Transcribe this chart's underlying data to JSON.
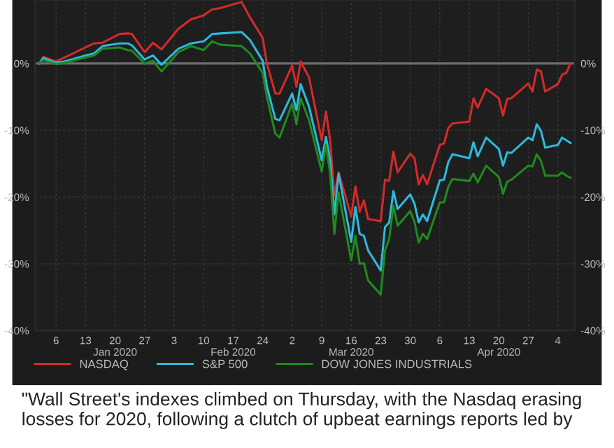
{
  "chart_data": {
    "type": "line",
    "x": [
      "2020-01-02",
      "2020-01-03",
      "2020-01-06",
      "2020-01-08",
      "2020-01-13",
      "2020-01-15",
      "2020-01-17",
      "2020-01-21",
      "2020-01-23",
      "2020-01-24",
      "2020-01-27",
      "2020-01-29",
      "2020-01-31",
      "2020-02-04",
      "2020-02-07",
      "2020-02-10",
      "2020-02-12",
      "2020-02-14",
      "2020-02-19",
      "2020-02-21",
      "2020-02-24",
      "2020-02-25",
      "2020-02-27",
      "2020-02-28",
      "2020-03-02",
      "2020-03-03",
      "2020-03-04",
      "2020-03-06",
      "2020-03-09",
      "2020-03-10",
      "2020-03-11",
      "2020-03-12",
      "2020-03-13",
      "2020-03-16",
      "2020-03-17",
      "2020-03-18",
      "2020-03-19",
      "2020-03-20",
      "2020-03-23",
      "2020-03-24",
      "2020-03-25",
      "2020-03-26",
      "2020-03-27",
      "2020-03-30",
      "2020-03-31",
      "2020-04-01",
      "2020-04-02",
      "2020-04-03",
      "2020-04-06",
      "2020-04-07",
      "2020-04-08",
      "2020-04-09",
      "2020-04-13",
      "2020-04-14",
      "2020-04-15",
      "2020-04-17",
      "2020-04-20",
      "2020-04-21",
      "2020-04-22",
      "2020-04-23",
      "2020-04-27",
      "2020-04-28",
      "2020-04-29",
      "2020-04-30",
      "2020-05-01",
      "2020-05-04",
      "2020-05-05",
      "2020-05-06",
      "2020-05-07"
    ],
    "series": [
      {
        "name": "NASDAQ",
        "color": "#d42a2a",
        "values": [
          0,
          1.0,
          0.3,
          0.9,
          2.4,
          3.0,
          3.1,
          4.4,
          4.5,
          4.4,
          1.7,
          3.1,
          2.1,
          5.2,
          6.6,
          7.2,
          8.1,
          8.3,
          9.2,
          6.9,
          3.8,
          0,
          -4.5,
          -4.5,
          -0.3,
          -3.5,
          0.3,
          -2.1,
          -11.5,
          -7.2,
          -11.5,
          -19.8,
          -16.3,
          -22.9,
          -18.4,
          -22.2,
          -20.5,
          -23.3,
          -23.6,
          -17.4,
          -17.6,
          -13.2,
          -16.3,
          -13.5,
          -14.2,
          -18.1,
          -16.7,
          -18.1,
          -12.2,
          -12,
          -9.7,
          -9.0,
          -8.7,
          -5.2,
          -6.6,
          -3.8,
          -5.2,
          -7.8,
          -5.3,
          -5.2,
          -3.0,
          -4.2,
          -0.9,
          -1.2,
          -4.2,
          -3.1,
          -1.7,
          -1.4,
          0
        ]
      },
      {
        "name": "S&P 500",
        "color": "#2eb8dc",
        "values": [
          0,
          0.8,
          0.1,
          0.3,
          1.2,
          1.5,
          2.6,
          3.0,
          3.0,
          2.7,
          0.6,
          1.2,
          -0.2,
          2.2,
          3.0,
          3.3,
          4.4,
          4.5,
          4.7,
          3.5,
          0.4,
          -3.5,
          -8.3,
          -8.5,
          -4.5,
          -7,
          -3.1,
          -6.5,
          -14.5,
          -11,
          -14.5,
          -22.6,
          -16.5,
          -26.7,
          -21.5,
          -25.5,
          -25.8,
          -28,
          -31,
          -24.5,
          -23.8,
          -19.1,
          -21.8,
          -19.6,
          -21,
          -23.8,
          -22.6,
          -23.6,
          -17.5,
          -17.4,
          -14.8,
          -13.6,
          -14.2,
          -11.8,
          -13.9,
          -11.1,
          -12.8,
          -15.3,
          -13.3,
          -13.4,
          -11.1,
          -11.5,
          -9.1,
          -10.1,
          -12.6,
          -12.2,
          -11.1,
          -11.5,
          -11.9
        ]
      },
      {
        "name": "DOW JONES INDUSTRIALS",
        "color": "#1f8a1f",
        "values": [
          0,
          0.5,
          -0.1,
          0.1,
          0.9,
          1.2,
          2.2,
          2.4,
          2.0,
          1.9,
          0,
          0.4,
          -1.2,
          1.7,
          2.6,
          2.0,
          3.3,
          2.8,
          2.6,
          1.5,
          -1.4,
          -5,
          -10.5,
          -11.1,
          -6,
          -9.1,
          -5.2,
          -8.5,
          -16.2,
          -12.2,
          -16.5,
          -25.5,
          -19.3,
          -29.5,
          -25.8,
          -30,
          -29.9,
          -32.5,
          -34.6,
          -28,
          -26.3,
          -21.3,
          -24.3,
          -22.1,
          -23.7,
          -26.8,
          -25.5,
          -26.3,
          -20.8,
          -20.8,
          -18.5,
          -17.3,
          -17.6,
          -16.5,
          -17.8,
          -15.3,
          -17.0,
          -19.5,
          -17.7,
          -17.4,
          -15.3,
          -15.4,
          -13.6,
          -14.6,
          -16.8,
          -16.8,
          -16.3,
          -16.8,
          -17.1
        ]
      }
    ],
    "xlim": [
      "2020-01-01",
      "2020-05-08"
    ],
    "xticks": [
      {
        "value": "2020-01-06",
        "label": "6"
      },
      {
        "value": "2020-01-13",
        "label": "13"
      },
      {
        "value": "2020-01-20",
        "label": "20\nJan 2020"
      },
      {
        "value": "2020-01-27",
        "label": "27"
      },
      {
        "value": "2020-02-03",
        "label": "3"
      },
      {
        "value": "2020-02-10",
        "label": "10"
      },
      {
        "value": "2020-02-17",
        "label": "17\nFeb 2020"
      },
      {
        "value": "2020-02-24",
        "label": "24"
      },
      {
        "value": "2020-03-02",
        "label": "2"
      },
      {
        "value": "2020-03-09",
        "label": "9"
      },
      {
        "value": "2020-03-16",
        "label": "16\nMar 2020"
      },
      {
        "value": "2020-03-23",
        "label": "23"
      },
      {
        "value": "2020-03-30",
        "label": "30"
      },
      {
        "value": "2020-04-06",
        "label": "6"
      },
      {
        "value": "2020-04-13",
        "label": "13"
      },
      {
        "value": "2020-04-20",
        "label": "20\nApr 2020"
      },
      {
        "value": "2020-04-27",
        "label": "27"
      },
      {
        "value": "2020-05-04",
        "label": "4"
      }
    ],
    "ylim": [
      -40,
      9.5
    ],
    "yticks": [
      {
        "value": 0,
        "label": "0%"
      },
      {
        "value": -10,
        "label": "-10%"
      },
      {
        "value": -20,
        "label": "-20%"
      },
      {
        "value": -30,
        "label": "-30%"
      },
      {
        "value": -40,
        "label": "-40%"
      }
    ],
    "y2lim": [
      -40,
      9.5
    ],
    "y2ticks": [
      {
        "value": 0,
        "label": "0%"
      },
      {
        "value": -10,
        "label": "-10%"
      },
      {
        "value": -20,
        "label": "-20%"
      },
      {
        "value": -30,
        "label": "-30%"
      },
      {
        "value": -40,
        "label": "-40%"
      }
    ],
    "ref_lines": [
      {
        "axis": "y",
        "value": 0,
        "color": "#6e6e6e"
      }
    ],
    "grid": true,
    "legend": "bottom left",
    "marker": "none",
    "line_style": "solid",
    "annotations": [
      "\"Wall Street's indexes climbed on Thursday, with the Nasdaq erasing losses for 2020, following a clutch of upbeat earnings reports led by"
    ]
  }
}
